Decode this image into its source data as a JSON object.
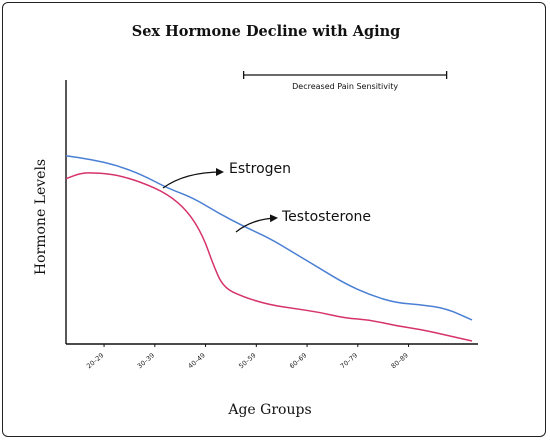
{
  "chart_data": {
    "type": "line",
    "title": "Sex Hormone Decline with Aging",
    "xlabel": "Age Groups",
    "ylabel": "Hormone Levels",
    "categories": [
      "20–29",
      "30–39",
      "40–49",
      "50–59",
      "60–69",
      "70–79",
      "80–89"
    ],
    "xlim": [
      0,
      8
    ],
    "ylim": [
      0,
      100
    ],
    "grid": false,
    "series": [
      {
        "name": "Testosterone",
        "color": "#4a7fd4",
        "x": [
          0,
          0.5,
          1,
          1.5,
          2,
          2.5,
          3,
          3.5,
          4,
          4.5,
          5,
          5.5,
          6,
          6.5,
          7,
          7.5,
          8
        ],
        "y": [
          97,
          95,
          92,
          87,
          80,
          75,
          67,
          60,
          54,
          46,
          38,
          30,
          24,
          20,
          19,
          17,
          11
        ]
      },
      {
        "name": "Estrogen",
        "color": "#d6336c",
        "x": [
          0,
          0.3,
          0.6,
          1,
          1.5,
          2,
          2.4,
          2.7,
          2.9,
          3.1,
          3.5,
          4,
          4.5,
          5,
          5.5,
          6,
          6.5,
          7,
          7.5,
          8
        ],
        "y": [
          85,
          88,
          88,
          87,
          83,
          77,
          68,
          55,
          40,
          28,
          23,
          19,
          17,
          15,
          12,
          11,
          8,
          6,
          3,
          0
        ]
      }
    ],
    "annotations": {
      "estrogen_label": "Estrogen",
      "testosterone_label": "Testosterone",
      "range_label": "Decreased Pain Sensitivity",
      "range_x": [
        3.5,
        7.5
      ]
    }
  }
}
